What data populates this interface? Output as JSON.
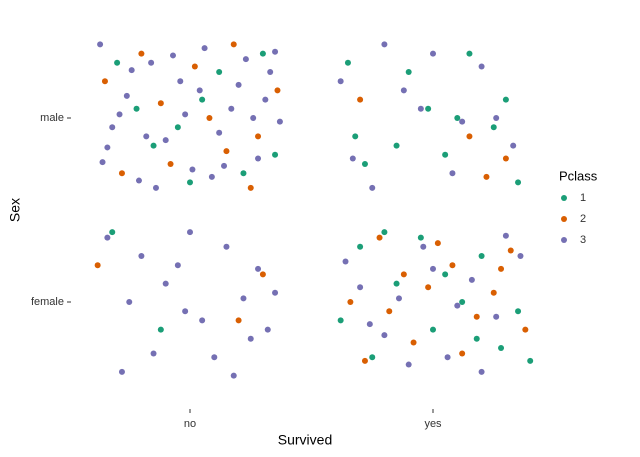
{
  "chart_data": {
    "type": "scatter",
    "x_label": "Survived",
    "y_label": "Sex",
    "xlim": [
      0.45,
      2.5
    ],
    "ylim": [
      0.45,
      2.45
    ],
    "xticks": [
      {
        "value": 1,
        "label": "no"
      },
      {
        "value": 2,
        "label": "yes"
      }
    ],
    "yticks": [
      {
        "value": 1,
        "label": "female"
      },
      {
        "value": 2,
        "label": "male"
      }
    ],
    "legend_title": "Pclass",
    "legend": "right",
    "grid": false,
    "series": [
      {
        "name": "1",
        "color": "#1b9e77",
        "x": [
          0.7,
          0.85,
          1.05,
          1.22,
          1.3,
          0.95,
          1.12,
          0.78,
          1.35,
          1.0,
          1.65,
          1.9,
          2.05,
          2.3,
          1.72,
          2.15,
          2.25,
          1.85,
          2.35,
          1.98,
          1.68,
          2.1,
          0.68,
          0.88,
          1.7,
          1.85,
          2.0,
          2.2,
          2.35,
          1.75,
          1.95,
          2.12,
          2.28,
          1.62,
          2.05,
          2.4,
          1.8,
          2.18
        ],
        "values": [
          2.3,
          1.85,
          2.1,
          1.7,
          2.35,
          1.95,
          2.25,
          2.05,
          1.8,
          1.65,
          2.3,
          2.25,
          1.8,
          2.1,
          1.75,
          2.35,
          1.95,
          1.85,
          1.65,
          2.05,
          1.9,
          2.0,
          1.38,
          0.85,
          1.3,
          1.1,
          0.85,
          1.25,
          0.95,
          0.7,
          1.35,
          1.0,
          0.75,
          0.9,
          1.15,
          0.68,
          1.38,
          0.8
        ]
      },
      {
        "name": "2",
        "color": "#d95f02",
        "x": [
          0.65,
          0.8,
          0.92,
          1.08,
          1.18,
          1.28,
          1.36,
          0.72,
          1.02,
          1.25,
          0.88,
          1.15,
          1.7,
          2.15,
          2.3,
          2.22,
          0.62,
          1.2,
          1.3,
          1.66,
          1.78,
          1.92,
          2.08,
          2.25,
          2.38,
          1.72,
          1.88,
          2.02,
          2.18,
          2.32,
          1.82,
          1.98,
          2.12,
          2.28
        ],
        "values": [
          2.2,
          2.35,
          1.75,
          2.0,
          2.4,
          1.9,
          2.15,
          1.7,
          2.28,
          1.62,
          2.08,
          1.82,
          2.1,
          1.9,
          1.78,
          1.68,
          1.2,
          0.9,
          1.15,
          1.0,
          1.35,
          0.78,
          1.2,
          1.05,
          0.85,
          0.68,
          1.15,
          1.32,
          0.92,
          1.28,
          0.95,
          1.08,
          0.72,
          1.18
        ]
      },
      {
        "name": "3",
        "color": "#7570b3",
        "x": [
          0.63,
          0.68,
          0.74,
          0.79,
          0.84,
          0.9,
          0.96,
          1.01,
          1.06,
          1.12,
          1.17,
          1.23,
          1.28,
          1.33,
          1.37,
          0.66,
          0.76,
          0.86,
          0.98,
          1.09,
          1.2,
          1.31,
          0.71,
          0.82,
          0.93,
          1.04,
          1.14,
          1.26,
          1.35,
          0.64,
          1.62,
          1.8,
          1.95,
          2.08,
          2.2,
          2.33,
          1.75,
          1.88,
          2.0,
          2.26,
          1.67,
          2.12,
          0.66,
          0.75,
          0.85,
          0.95,
          1.05,
          1.15,
          1.25,
          1.35,
          0.72,
          0.9,
          1.0,
          1.1,
          1.22,
          1.32,
          0.8,
          1.18,
          1.28,
          0.98,
          1.64,
          1.74,
          1.86,
          1.96,
          2.06,
          2.16,
          2.26,
          2.36,
          1.7,
          1.9,
          2.1,
          2.3,
          1.8,
          2.0,
          2.2
        ],
        "values": [
          2.4,
          1.95,
          2.12,
          1.66,
          2.3,
          1.88,
          2.2,
          1.72,
          2.38,
          1.92,
          2.05,
          2.32,
          1.78,
          2.25,
          1.98,
          1.84,
          2.26,
          1.62,
          2.02,
          1.68,
          2.18,
          2.1,
          2.02,
          1.9,
          2.34,
          2.15,
          1.74,
          2.0,
          2.36,
          1.76,
          2.2,
          2.4,
          2.05,
          1.7,
          2.28,
          1.85,
          1.62,
          2.15,
          2.35,
          2.0,
          1.78,
          1.98,
          1.35,
          1.0,
          0.72,
          1.2,
          0.9,
          1.3,
          0.8,
          1.05,
          0.62,
          1.1,
          1.38,
          0.7,
          1.02,
          0.85,
          1.25,
          0.6,
          1.18,
          0.95,
          1.22,
          0.88,
          1.02,
          1.3,
          0.7,
          1.12,
          0.92,
          1.25,
          1.08,
          0.66,
          0.98,
          1.36,
          0.82,
          1.18,
          0.62
        ]
      }
    ]
  }
}
